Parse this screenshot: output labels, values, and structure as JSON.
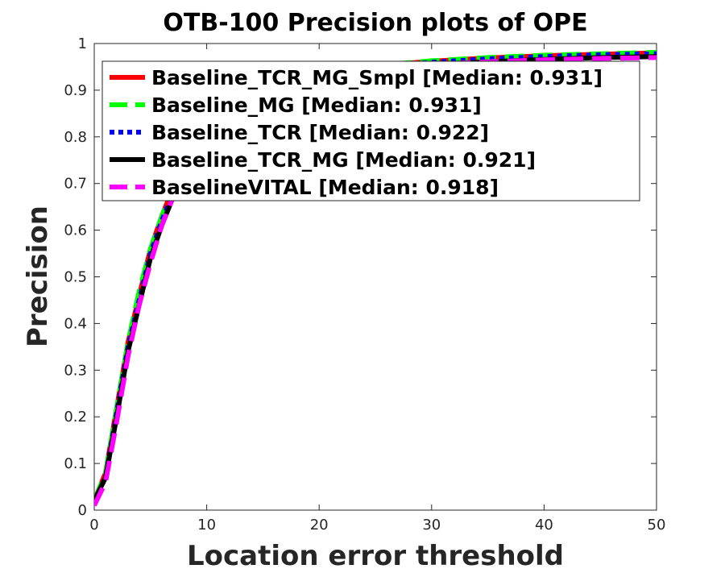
{
  "chart_data": {
    "type": "line",
    "title": "OTB-100  Precision plots of OPE",
    "xlabel": "Location error threshold",
    "ylabel": "Precision",
    "xlim": [
      0,
      50
    ],
    "ylim": [
      0,
      1
    ],
    "xticks": [
      "0",
      "10",
      "20",
      "30",
      "40",
      "50"
    ],
    "yticks": [
      "0",
      "0.1",
      "0.2",
      "0.3",
      "0.4",
      "0.5",
      "0.6",
      "0.7",
      "0.8",
      "0.9",
      "1"
    ],
    "grid": false,
    "legend_position": "top-left",
    "series": [
      {
        "name": "Baseline_TCR_MG_Smpl [Median: 0.931]",
        "color": "#ff0000",
        "style": "solid",
        "x": [
          0,
          1,
          2,
          3,
          4,
          5,
          6,
          7,
          8,
          10,
          12,
          15,
          20,
          25,
          30,
          35,
          40,
          45,
          50
        ],
        "y": [
          0.02,
          0.08,
          0.22,
          0.36,
          0.46,
          0.56,
          0.63,
          0.69,
          0.74,
          0.81,
          0.86,
          0.9,
          0.935,
          0.952,
          0.962,
          0.969,
          0.974,
          0.977,
          0.98
        ]
      },
      {
        "name": "Baseline_MG [Median: 0.931]",
        "color": "#00ff00",
        "style": "dashed",
        "x": [
          0,
          1,
          2,
          3,
          4,
          5,
          6,
          7,
          8,
          10,
          12,
          15,
          20,
          25,
          30,
          35,
          40,
          45,
          50
        ],
        "y": [
          0.02,
          0.08,
          0.22,
          0.36,
          0.47,
          0.56,
          0.63,
          0.69,
          0.74,
          0.81,
          0.86,
          0.9,
          0.935,
          0.953,
          0.963,
          0.97,
          0.975,
          0.978,
          0.981
        ]
      },
      {
        "name": "Baseline_TCR [Median: 0.922]",
        "color": "#0000ff",
        "style": "dotted",
        "x": [
          0,
          1,
          2,
          3,
          4,
          5,
          6,
          7,
          8,
          10,
          12,
          15,
          20,
          25,
          30,
          35,
          40,
          45,
          50
        ],
        "y": [
          0.02,
          0.07,
          0.21,
          0.35,
          0.45,
          0.55,
          0.62,
          0.68,
          0.73,
          0.8,
          0.85,
          0.89,
          0.93,
          0.95,
          0.96,
          0.967,
          0.972,
          0.976,
          0.978
        ]
      },
      {
        "name": "Baseline_TCR_MG [Median: 0.921]",
        "color": "#000000",
        "style": "solid",
        "x": [
          0,
          1,
          2,
          3,
          4,
          5,
          6,
          7,
          8,
          10,
          12,
          15,
          20,
          25,
          30,
          35,
          40,
          45,
          50
        ],
        "y": [
          0.02,
          0.07,
          0.2,
          0.34,
          0.44,
          0.54,
          0.61,
          0.67,
          0.72,
          0.79,
          0.84,
          0.88,
          0.925,
          0.945,
          0.955,
          0.961,
          0.966,
          0.97,
          0.972
        ]
      },
      {
        "name": "BaselineVITAL [Median: 0.918]",
        "color": "#ff00ff",
        "style": "dashed",
        "x": [
          0,
          1,
          2,
          3,
          4,
          5,
          6,
          7,
          8,
          10,
          12,
          15,
          20,
          25,
          30,
          35,
          40,
          45,
          50
        ],
        "y": [
          0.01,
          0.06,
          0.19,
          0.33,
          0.44,
          0.53,
          0.61,
          0.67,
          0.72,
          0.79,
          0.84,
          0.88,
          0.925,
          0.945,
          0.955,
          0.961,
          0.965,
          0.968,
          0.97
        ]
      }
    ]
  }
}
